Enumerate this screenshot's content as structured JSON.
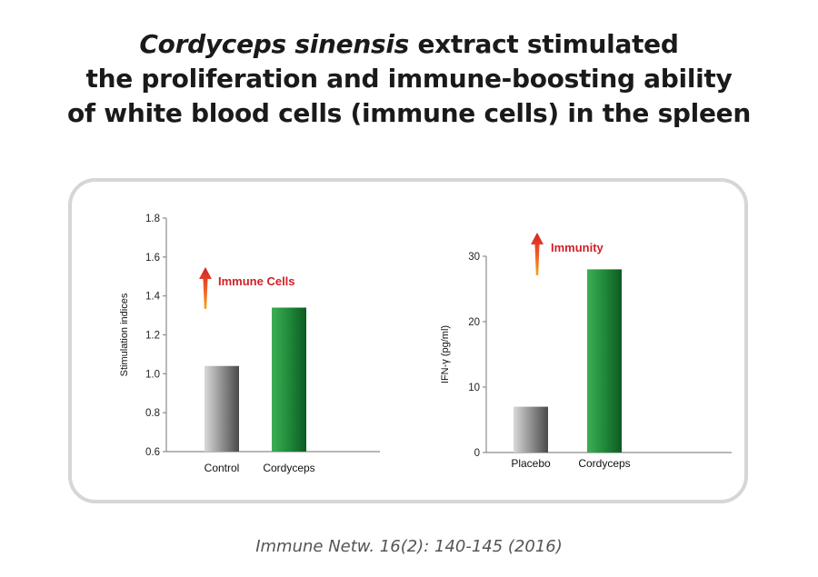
{
  "title": {
    "italic_part": "Cordyceps sinensis",
    "line1_rest": " extract stimulated",
    "line2": "the proliferation and immune-boosting ability",
    "line3": "of white blood cells (immune cells) in the spleen"
  },
  "citation": "Immune Netw. 16(2): 140-145 (2016)",
  "colors": {
    "control_bar": "#7a7a7a",
    "cordyceps_bar": "#1f8a3a",
    "annotation": "#d32027",
    "panel_border": "#d6d6d6"
  },
  "chart_data": [
    {
      "type": "bar",
      "categories": [
        "Control",
        "Cordyceps"
      ],
      "values": [
        1.04,
        1.34
      ],
      "ylabel": "Stimulation indices",
      "ylim": [
        0.6,
        1.8
      ],
      "yticks": [
        "0.6",
        "0.8",
        "1.0",
        "1.2",
        "1.4",
        "1.6",
        "1.8"
      ],
      "annotation": "Immune Cells",
      "grid": false
    },
    {
      "type": "bar",
      "categories": [
        "Placebo",
        "Cordyceps"
      ],
      "values": [
        7,
        28
      ],
      "ylabel": "IFN-γ (pg/ml)",
      "ylim": [
        0,
        30
      ],
      "yticks": [
        "0",
        "10",
        "20",
        "30"
      ],
      "annotation": "Immunity",
      "grid": false
    }
  ]
}
